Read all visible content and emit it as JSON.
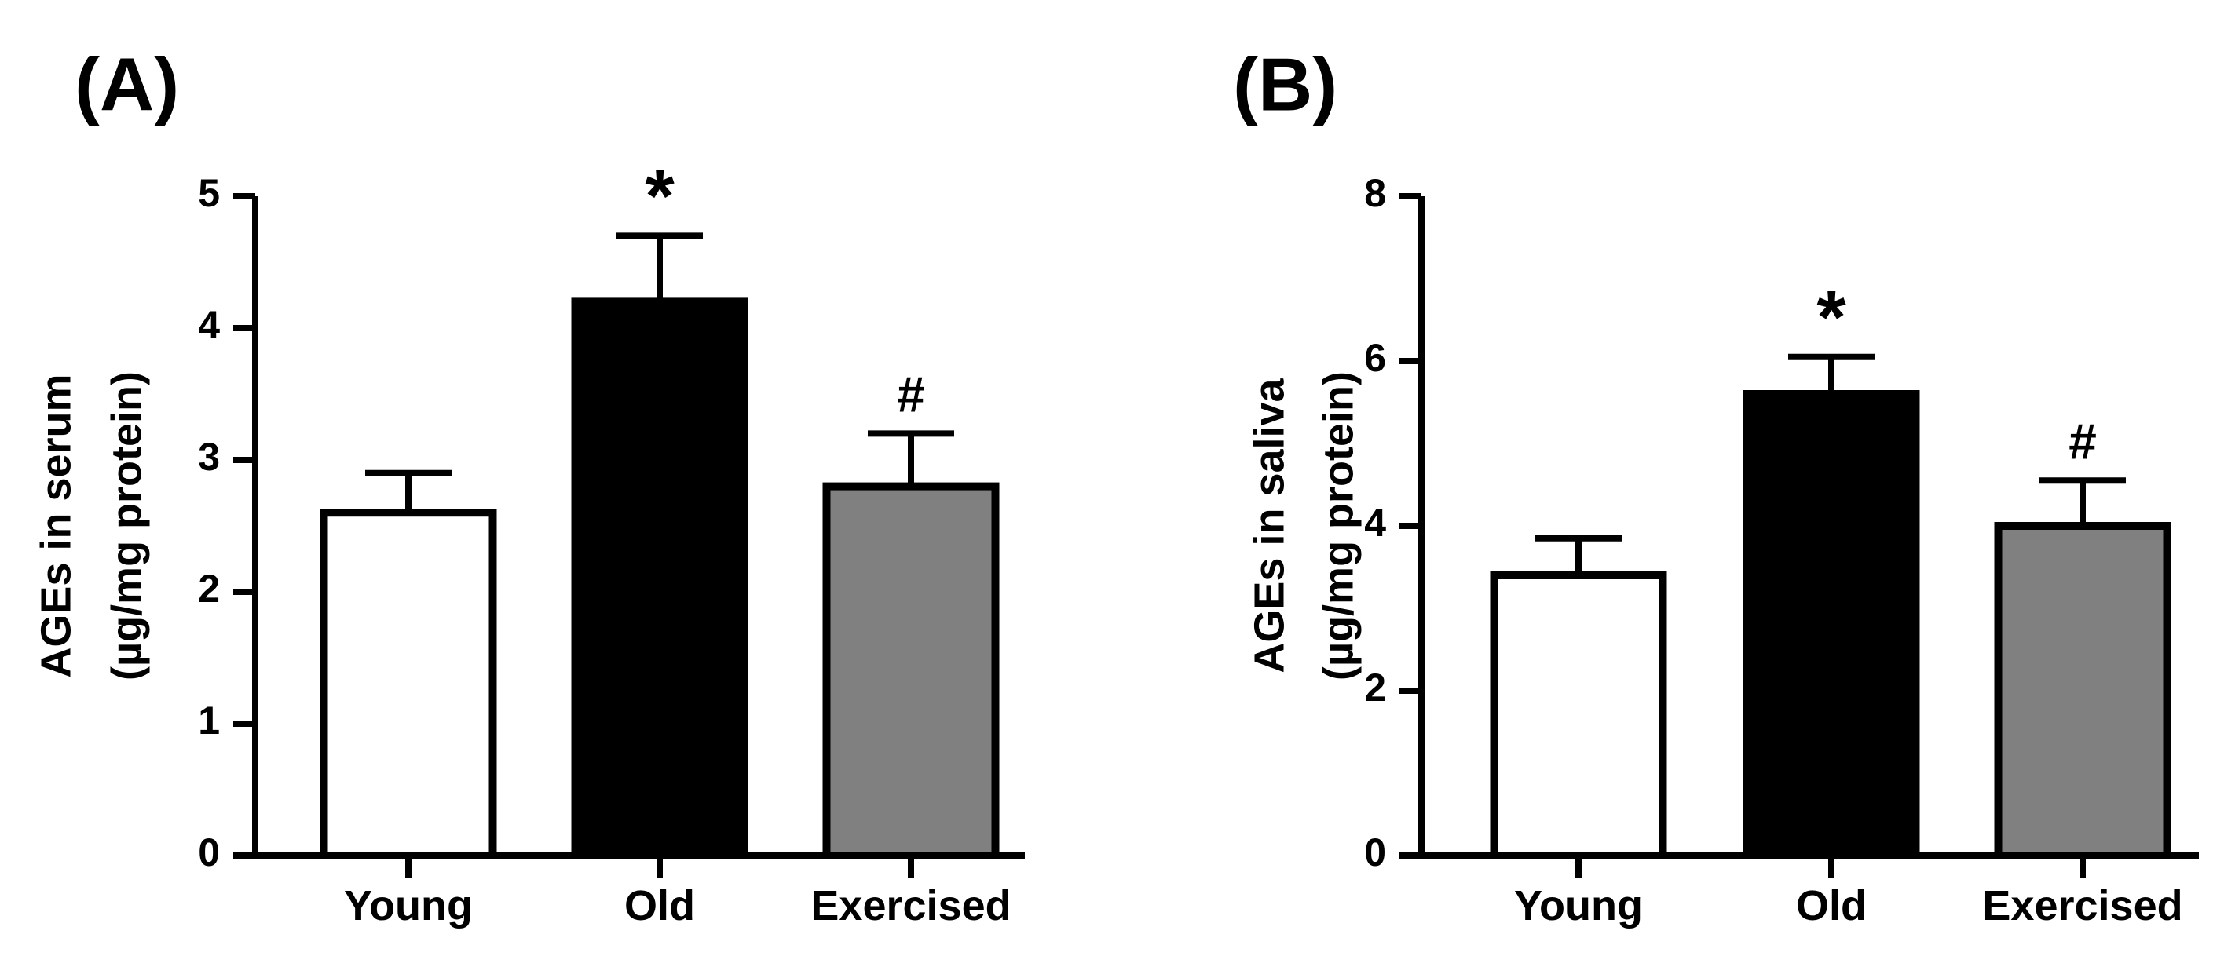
{
  "figure": {
    "background": "#ffffff",
    "axis_color": "#000000"
  },
  "chart_data": [
    {
      "type": "bar",
      "panel_label": "(A)",
      "categories": [
        "Young",
        "Old",
        "Exercised"
      ],
      "values": [
        2.6,
        4.2,
        2.8
      ],
      "errors": [
        0.3,
        0.5,
        0.4
      ],
      "bar_colors": [
        "#ffffff",
        "#000000",
        "#808080"
      ],
      "annotations": [
        "",
        "*",
        "#"
      ],
      "ylabel_lines": [
        "AGEs in serum",
        "(µg/mg protein)"
      ],
      "xlabel": "",
      "ylim": [
        0,
        5
      ],
      "yticks": [
        0,
        1,
        2,
        3,
        4,
        5
      ],
      "ytick_labels": [
        "0",
        "1",
        "2",
        "3",
        "4",
        "5"
      ],
      "grid": false
    },
    {
      "type": "bar",
      "panel_label": "(B)",
      "categories": [
        "Young",
        "Old",
        "Exercised"
      ],
      "values": [
        3.4,
        5.6,
        4.0
      ],
      "errors": [
        0.45,
        0.45,
        0.55
      ],
      "bar_colors": [
        "#ffffff",
        "#000000",
        "#808080"
      ],
      "annotations": [
        "",
        "*",
        "#"
      ],
      "ylabel_lines": [
        "AGEs in saliva",
        "(µg/mg protein)"
      ],
      "xlabel": "",
      "ylim": [
        0,
        8
      ],
      "yticks": [
        0,
        2,
        4,
        6,
        8
      ],
      "ytick_labels": [
        "0",
        "2",
        "4",
        "6",
        "8"
      ],
      "grid": false
    }
  ]
}
